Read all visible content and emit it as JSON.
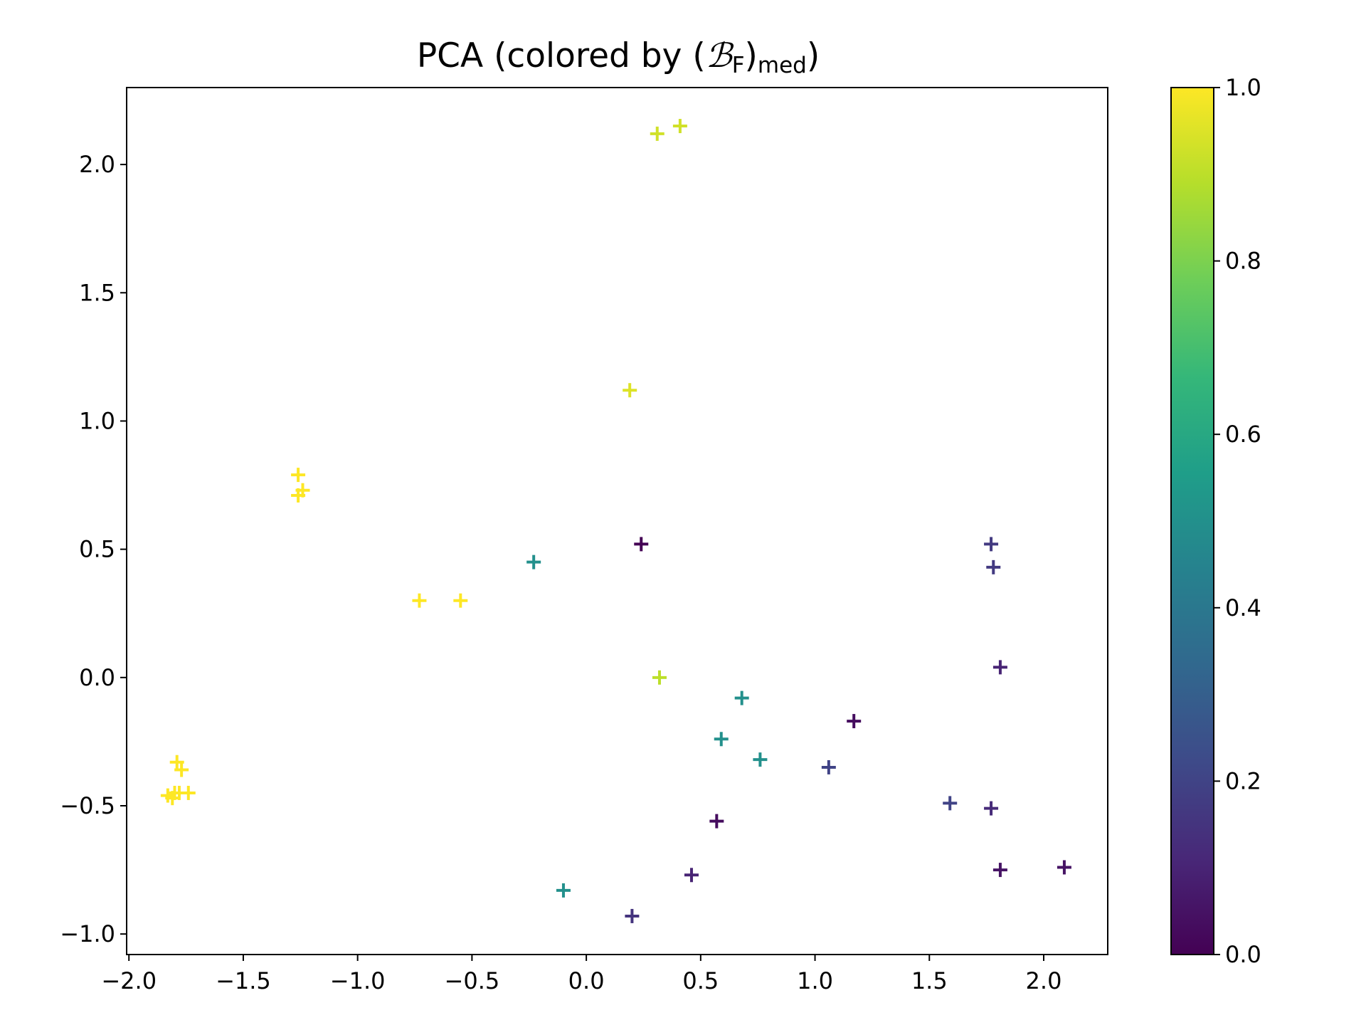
{
  "chart_data": {
    "type": "scatter",
    "title": {
      "prefix": "PCA (colored by (",
      "symbol": "ℬ",
      "symbol_sub": "F",
      "close": ")",
      "sub": "med",
      "suffix": ")"
    },
    "xlabel": "",
    "ylabel": "",
    "xlim": [
      -2.01,
      2.28
    ],
    "ylim": [
      -1.08,
      2.3
    ],
    "xticks": [
      -2.0,
      -1.5,
      -1.0,
      -0.5,
      0.0,
      0.5,
      1.0,
      1.5,
      2.0
    ],
    "yticks": [
      -1.0,
      -0.5,
      0.0,
      0.5,
      1.0,
      1.5,
      2.0
    ],
    "marker": "+",
    "colormap": "viridis",
    "colormap_stops": [
      "#440154",
      "#482878",
      "#3e4a89",
      "#31688e",
      "#26828e",
      "#1f9e89",
      "#35b779",
      "#6ece58",
      "#b5de2b",
      "#fde725"
    ],
    "colorbar": {
      "range": [
        0.0,
        1.0
      ],
      "ticks": [
        0.0,
        0.2,
        0.4,
        0.6,
        0.8,
        1.0
      ]
    },
    "grid": false,
    "points": [
      {
        "x": 0.31,
        "y": 2.12,
        "c": 0.93
      },
      {
        "x": 0.41,
        "y": 2.15,
        "c": 0.93
      },
      {
        "x": 0.19,
        "y": 1.12,
        "c": 0.95
      },
      {
        "x": -1.26,
        "y": 0.79,
        "c": 1.0
      },
      {
        "x": -1.24,
        "y": 0.73,
        "c": 1.0
      },
      {
        "x": -1.26,
        "y": 0.71,
        "c": 1.0
      },
      {
        "x": -0.73,
        "y": 0.3,
        "c": 1.0
      },
      {
        "x": -0.55,
        "y": 0.3,
        "c": 1.0
      },
      {
        "x": 0.32,
        "y": 0.0,
        "c": 0.9
      },
      {
        "x": -1.79,
        "y": -0.33,
        "c": 1.0
      },
      {
        "x": -1.77,
        "y": -0.36,
        "c": 1.0
      },
      {
        "x": -1.8,
        "y": -0.45,
        "c": 1.0
      },
      {
        "x": -1.83,
        "y": -0.46,
        "c": 1.0
      },
      {
        "x": -1.78,
        "y": -0.45,
        "c": 1.0
      },
      {
        "x": -1.74,
        "y": -0.45,
        "c": 1.0
      },
      {
        "x": -1.81,
        "y": -0.47,
        "c": 1.0
      },
      {
        "x": -0.23,
        "y": 0.45,
        "c": 0.5
      },
      {
        "x": 0.68,
        "y": -0.08,
        "c": 0.5
      },
      {
        "x": 0.59,
        "y": -0.24,
        "c": 0.5
      },
      {
        "x": 0.76,
        "y": -0.32,
        "c": 0.5
      },
      {
        "x": -0.1,
        "y": -0.83,
        "c": 0.5
      },
      {
        "x": 0.24,
        "y": 0.52,
        "c": 0.0
      },
      {
        "x": 1.17,
        "y": -0.17,
        "c": 0.03
      },
      {
        "x": 0.57,
        "y": -0.56,
        "c": 0.03
      },
      {
        "x": 0.46,
        "y": -0.77,
        "c": 0.1
      },
      {
        "x": 0.2,
        "y": -0.93,
        "c": 0.15
      },
      {
        "x": 1.06,
        "y": -0.35,
        "c": 0.2
      },
      {
        "x": 1.59,
        "y": -0.49,
        "c": 0.2
      },
      {
        "x": 1.77,
        "y": -0.51,
        "c": 0.12
      },
      {
        "x": 1.81,
        "y": -0.75,
        "c": 0.05
      },
      {
        "x": 2.09,
        "y": -0.74,
        "c": 0.05
      },
      {
        "x": 1.77,
        "y": 0.52,
        "c": 0.17
      },
      {
        "x": 1.78,
        "y": 0.43,
        "c": 0.17
      },
      {
        "x": 1.81,
        "y": 0.04,
        "c": 0.1
      }
    ]
  }
}
